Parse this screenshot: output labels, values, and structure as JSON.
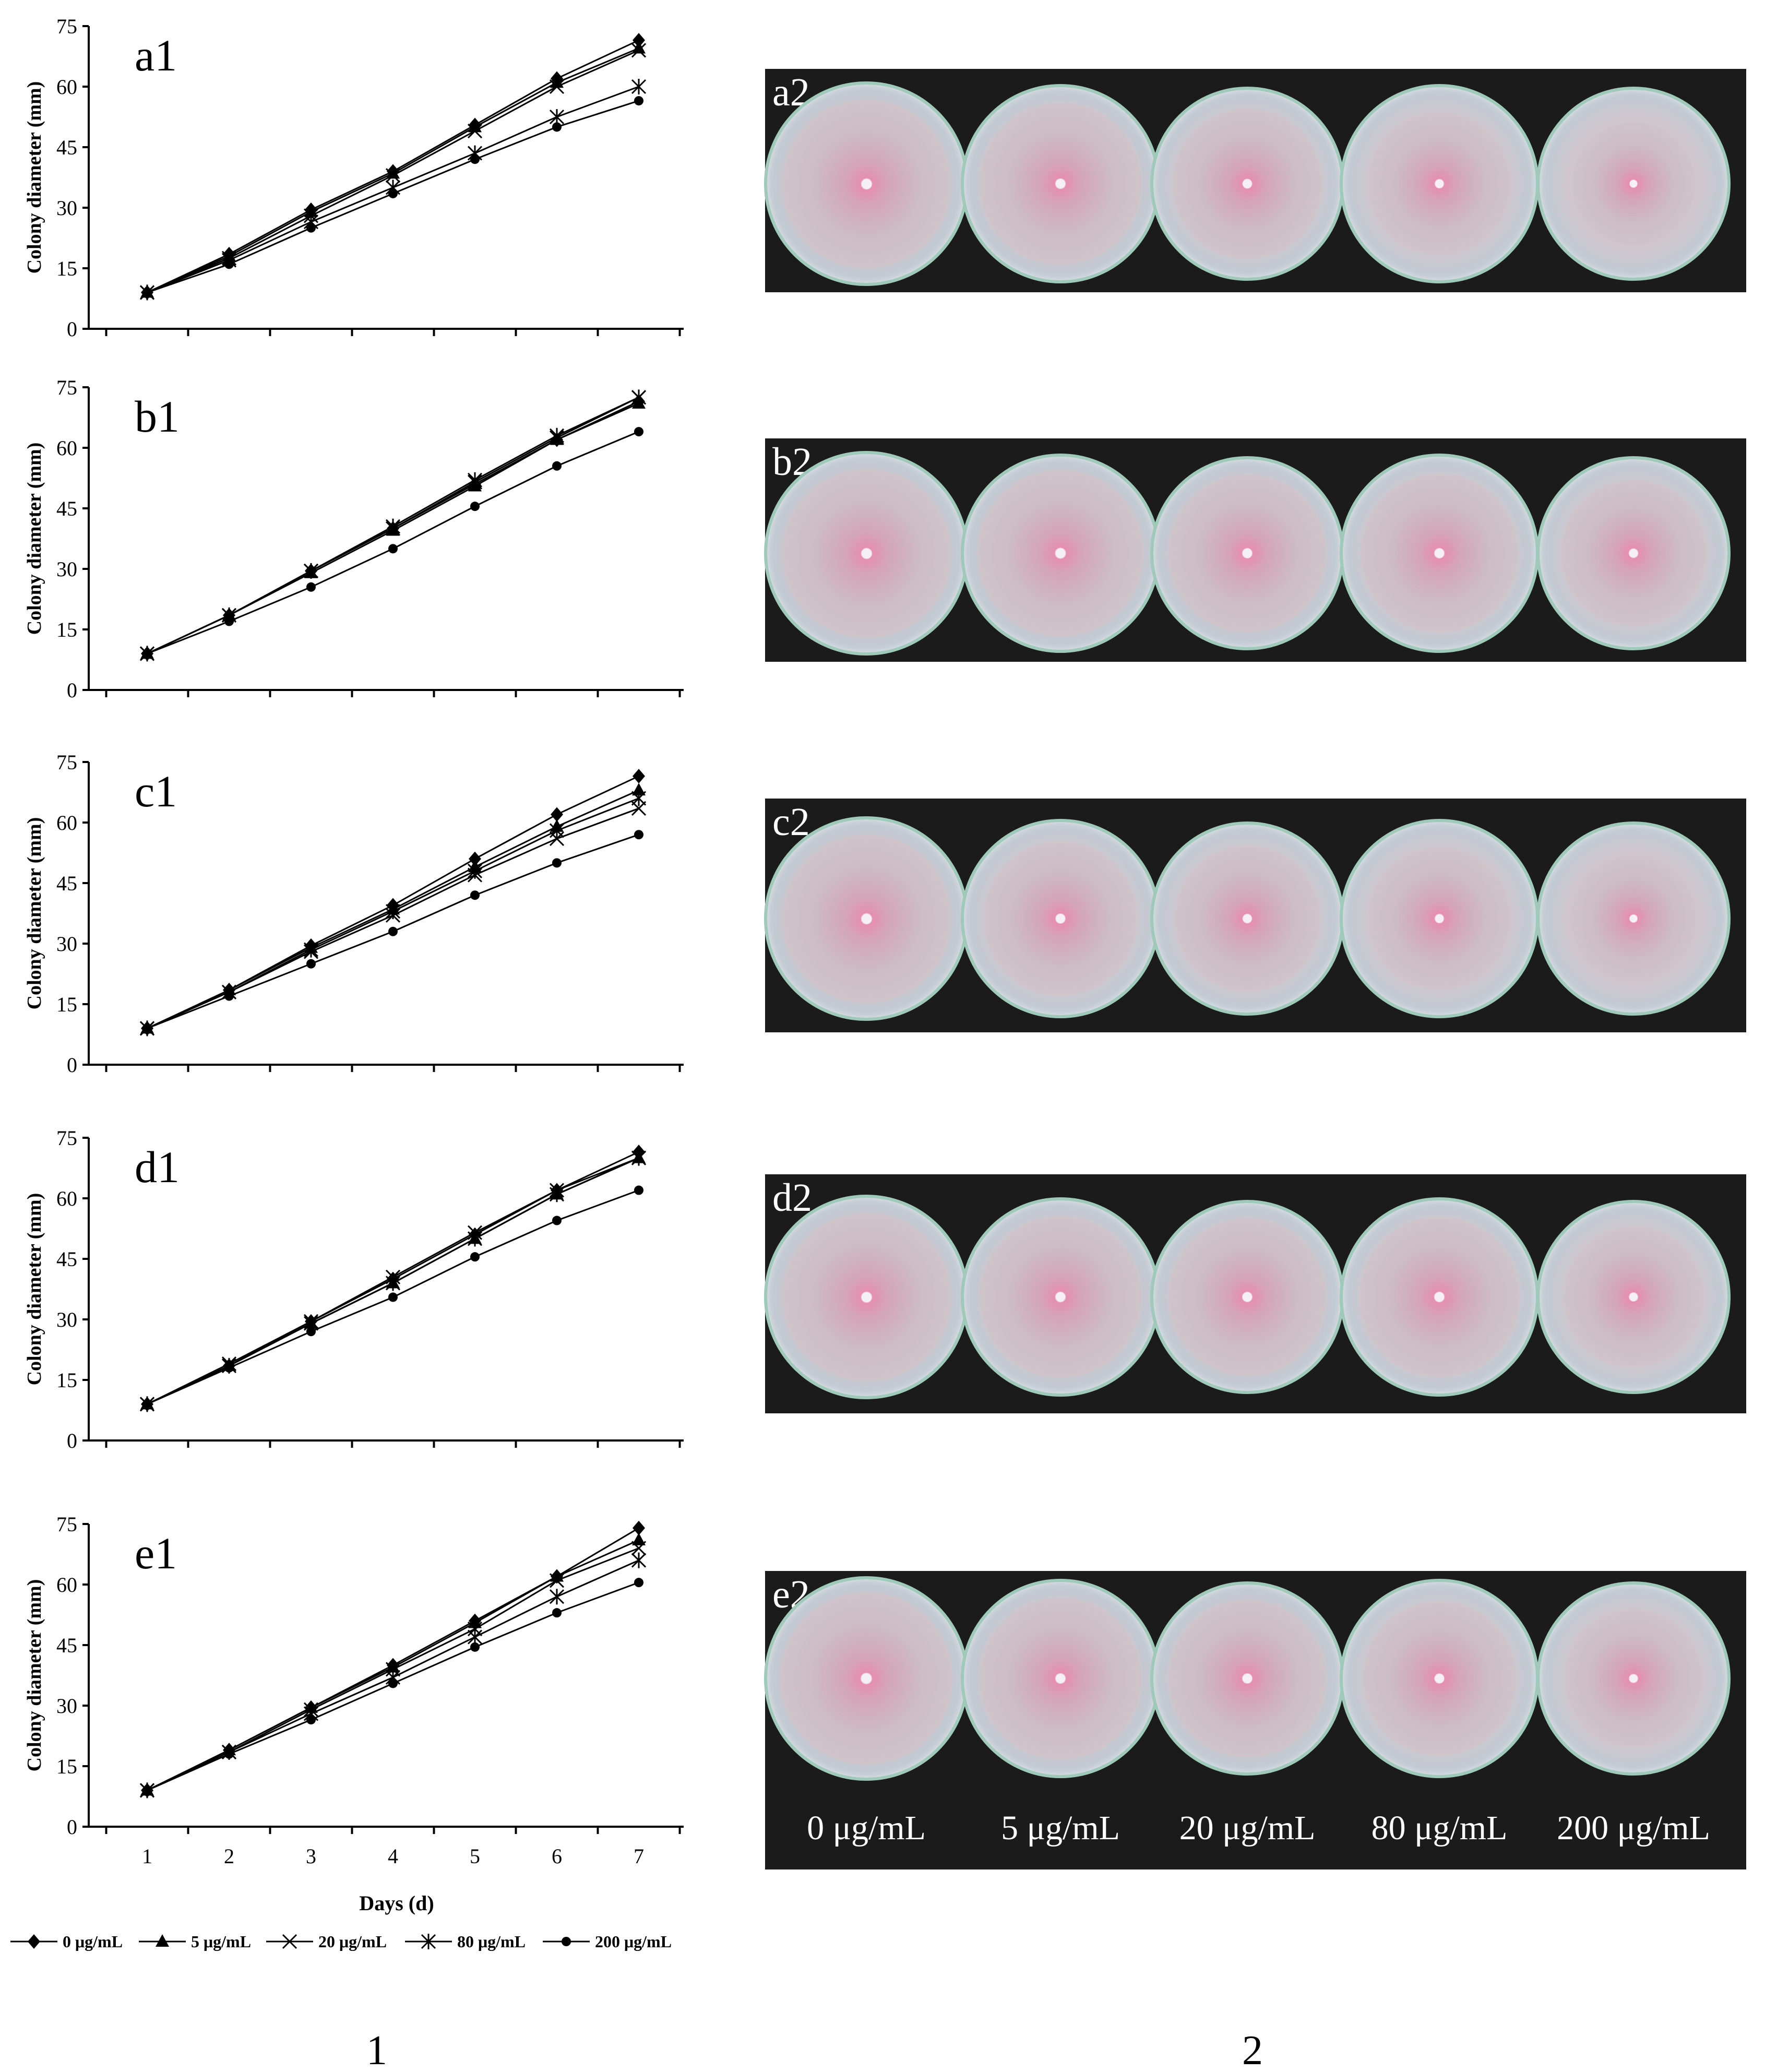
{
  "chart_data": [
    {
      "type": "line",
      "panel_label": "a1",
      "ylabel": "Colony diameter (mm)",
      "x": [
        1,
        2,
        3,
        4,
        5,
        6,
        7
      ],
      "yticks": [
        0,
        15,
        30,
        45,
        60,
        75
      ],
      "ylim": [
        0,
        75
      ],
      "series": [
        {
          "name": "0 μg/mL",
          "marker": "diamond",
          "values": [
            9,
            18.5,
            29.5,
            39,
            50.5,
            62,
            71.5
          ]
        },
        {
          "name": "5 μg/mL",
          "marker": "triangle",
          "values": [
            9,
            18,
            29,
            38.5,
            50,
            61,
            69.5
          ]
        },
        {
          "name": "20 μg/mL",
          "marker": "x",
          "values": [
            9,
            17.5,
            28,
            38,
            49,
            60,
            69
          ]
        },
        {
          "name": "80 μg/mL",
          "marker": "star",
          "values": [
            9,
            17,
            26.5,
            35,
            43.5,
            52.5,
            60
          ]
        },
        {
          "name": "200 μg/mL",
          "marker": "circle",
          "values": [
            9,
            16,
            25,
            33.5,
            42,
            50,
            56.5
          ]
        }
      ]
    },
    {
      "type": "line",
      "panel_label": "b1",
      "ylabel": "Colony diameter (mm)",
      "x": [
        1,
        2,
        3,
        4,
        5,
        6,
        7
      ],
      "yticks": [
        0,
        15,
        30,
        45,
        60,
        75
      ],
      "ylim": [
        0,
        75
      ],
      "series": [
        {
          "name": "0 μg/mL",
          "marker": "diamond",
          "values": [
            9,
            18.5,
            29.5,
            40,
            51,
            62,
            71.5
          ]
        },
        {
          "name": "5 μg/mL",
          "marker": "triangle",
          "values": [
            9,
            18.5,
            29,
            39.5,
            50.5,
            62,
            71
          ]
        },
        {
          "name": "20 μg/mL",
          "marker": "x",
          "values": [
            9,
            18.5,
            29.5,
            40,
            51.5,
            62.5,
            72.5
          ]
        },
        {
          "name": "80 μg/mL",
          "marker": "star",
          "values": [
            9,
            18.5,
            29.5,
            40.5,
            52,
            63,
            72.5
          ]
        },
        {
          "name": "200 μg/mL",
          "marker": "circle",
          "values": [
            9,
            17,
            25.5,
            35,
            45.5,
            55.5,
            64
          ]
        }
      ]
    },
    {
      "type": "line",
      "panel_label": "c1",
      "ylabel": "Colony diameter (mm)",
      "x": [
        1,
        2,
        3,
        4,
        5,
        6,
        7
      ],
      "yticks": [
        0,
        15,
        30,
        45,
        60,
        75
      ],
      "ylim": [
        0,
        75
      ],
      "series": [
        {
          "name": "0 μg/mL",
          "marker": "diamond",
          "values": [
            9,
            18.5,
            29.5,
            39.5,
            51,
            62,
            71.5
          ]
        },
        {
          "name": "5 μg/mL",
          "marker": "triangle",
          "values": [
            9,
            18.5,
            29,
            38.5,
            49,
            59,
            68
          ]
        },
        {
          "name": "20 μg/mL",
          "marker": "x",
          "values": [
            9,
            18,
            28,
            37,
            47,
            56,
            63.5
          ]
        },
        {
          "name": "80 μg/mL",
          "marker": "star",
          "values": [
            9,
            18,
            28.5,
            38,
            48,
            58,
            66
          ]
        },
        {
          "name": "200 μg/mL",
          "marker": "circle",
          "values": [
            9,
            17,
            25,
            33,
            42,
            50,
            57
          ]
        }
      ]
    },
    {
      "type": "line",
      "panel_label": "d1",
      "ylabel": "Colony diameter (mm)",
      "x": [
        1,
        2,
        3,
        4,
        5,
        6,
        7
      ],
      "yticks": [
        0,
        15,
        30,
        45,
        60,
        75
      ],
      "ylim": [
        0,
        75
      ],
      "series": [
        {
          "name": "0 μg/mL",
          "marker": "diamond",
          "values": [
            9,
            18.5,
            29.5,
            40,
            51,
            62,
            71.5
          ]
        },
        {
          "name": "5 μg/mL",
          "marker": "triangle",
          "values": [
            9,
            18.5,
            29,
            39,
            50,
            61,
            70
          ]
        },
        {
          "name": "20 μg/mL",
          "marker": "x",
          "values": [
            9,
            19,
            29.5,
            40.5,
            51.5,
            62,
            70
          ]
        },
        {
          "name": "80 μg/mL",
          "marker": "star",
          "values": [
            9,
            18.5,
            29,
            39,
            50,
            61,
            70
          ]
        },
        {
          "name": "200 μg/mL",
          "marker": "circle",
          "values": [
            9,
            18,
            27,
            35.5,
            45.5,
            54.5,
            62
          ]
        }
      ]
    },
    {
      "type": "line",
      "panel_label": "e1",
      "ylabel": "Colony diameter (mm)",
      "xlabel": "Days (d)",
      "x": [
        1,
        2,
        3,
        4,
        5,
        6,
        7
      ],
      "yticks": [
        0,
        15,
        30,
        45,
        60,
        75
      ],
      "ylim": [
        0,
        75
      ],
      "series": [
        {
          "name": "0 μg/mL",
          "marker": "diamond",
          "values": [
            9,
            19,
            29.5,
            40,
            51,
            62,
            74
          ]
        },
        {
          "name": "5 μg/mL",
          "marker": "triangle",
          "values": [
            9,
            19,
            29.5,
            39.5,
            50.5,
            62,
            71
          ]
        },
        {
          "name": "20 μg/mL",
          "marker": "x",
          "values": [
            9,
            18.5,
            29,
            39,
            49,
            61,
            69
          ]
        },
        {
          "name": "80 μg/mL",
          "marker": "star",
          "values": [
            9,
            18.5,
            28,
            37,
            47,
            57,
            66
          ]
        },
        {
          "name": "200 μg/mL",
          "marker": "circle",
          "values": [
            9,
            18,
            26.5,
            35.5,
            44.5,
            53,
            60.5
          ]
        }
      ]
    }
  ],
  "legend": [
    "0 μg/mL",
    "5 μg/mL",
    "20 μg/mL",
    "80 μg/mL",
    "200 μg/mL"
  ],
  "photos": [
    {
      "label": "a2",
      "colony_fraction": [
        0.85,
        0.84,
        0.8,
        0.74,
        0.66
      ]
    },
    {
      "label": "b2",
      "colony_fraction": [
        0.85,
        0.86,
        0.84,
        0.82,
        0.78
      ]
    },
    {
      "label": "c2",
      "colony_fraction": [
        0.85,
        0.8,
        0.78,
        0.74,
        0.68
      ]
    },
    {
      "label": "d2",
      "colony_fraction": [
        0.85,
        0.84,
        0.84,
        0.83,
        0.75
      ]
    },
    {
      "label": "e2",
      "colony_fraction": [
        0.87,
        0.84,
        0.84,
        0.8,
        0.74
      ]
    }
  ],
  "concentrations": [
    "0 μg/mL",
    "5 μg/mL",
    "20 μg/mL",
    "80 μg/mL",
    "200 μg/mL"
  ],
  "bottom_labels": [
    "1",
    "2"
  ],
  "colors": {
    "line": "#000000",
    "photo_background": "#1b1b1b",
    "colony_center": "#e58fb0"
  }
}
